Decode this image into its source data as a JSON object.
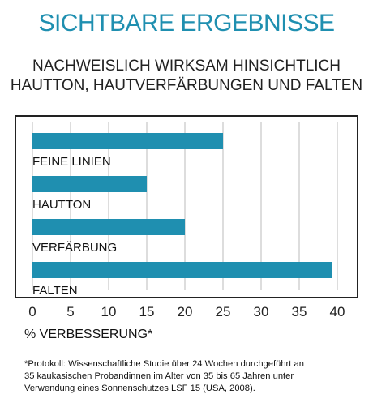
{
  "header": {
    "title": "SICHTBARE ERGEBNISSE",
    "subtitle_line1": "NACHWEISLICH WIRKSAM HINSICHTLICH",
    "subtitle_line2": "HAUTTON, HAUTVERFÄRBUNGEN UND FALTEN"
  },
  "chart_data": {
    "type": "bar",
    "orientation": "horizontal",
    "categories": [
      "FEINE LINIEN",
      "HAUTTON",
      "VERFÄRBUNG",
      "FALTEN"
    ],
    "values": [
      25,
      15,
      20,
      39.3
    ],
    "xlabel": "% VERBESSERUNG*",
    "xlim": [
      0,
      40
    ],
    "ticks": [
      0,
      5,
      10,
      15,
      20,
      25,
      30,
      35,
      40
    ],
    "grid": true,
    "bar_color": "#1f8fb0",
    "grid_color": "#bbbbbb",
    "frame_color": "#222222"
  },
  "footnote": {
    "line1": "*Protokoll: Wissenschaftliche Studie über 24 Wochen durchgeführt an",
    "line2": "35 kaukasischen Probandinnen im Alter von 35 bis 65 Jahren unter",
    "line3": "Verwendung eines Sonnenschutzes LSF 15 (USA, 2008)."
  }
}
